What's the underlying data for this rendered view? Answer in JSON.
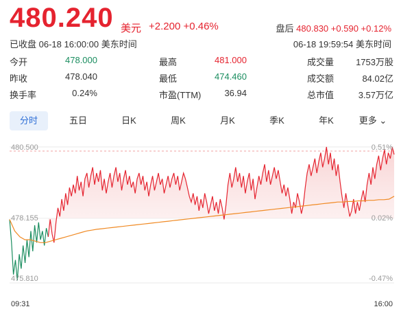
{
  "header": {
    "price": "480.240",
    "currency": "美元",
    "change": "+2.200",
    "change_pct": "+0.46%",
    "after_hours_label": "盘后",
    "after_hours_price": "480.830",
    "after_hours_change": "+0.590",
    "after_hours_pct": "+0.12%",
    "status": "已收盘 06-18 16:00:00 美东时间",
    "after_hours_time": "06-18 19:59:54 美东时间"
  },
  "stats": [
    [
      {
        "label": "今开",
        "value": "478.000",
        "color": "green"
      },
      {
        "label": "最高",
        "value": "481.000",
        "color": "red"
      },
      {
        "label": "成交量",
        "value": "1753万股",
        "color": "normal"
      }
    ],
    [
      {
        "label": "昨收",
        "value": "478.040",
        "color": "normal"
      },
      {
        "label": "最低",
        "value": "474.460",
        "color": "green"
      },
      {
        "label": "成交额",
        "value": "84.02亿",
        "color": "normal"
      }
    ],
    [
      {
        "label": "换手率",
        "value": "0.24%",
        "color": "normal"
      },
      {
        "label": "市盈(TTM)",
        "value": "36.94",
        "color": "normal"
      },
      {
        "label": "总市值",
        "value": "3.57万亿",
        "color": "normal"
      }
    ]
  ],
  "tabs": [
    "分时",
    "五日",
    "日K",
    "周K",
    "月K",
    "季K",
    "年K",
    "更多"
  ],
  "active_tab": 0,
  "chart_data": {
    "type": "line",
    "y_left_ticks": [
      "480.500",
      "478.155",
      "475.810"
    ],
    "y_right_ticks": [
      "0.51%",
      "0.02%",
      "-0.47%"
    ],
    "x_labels": [
      "09:31",
      "16:00"
    ],
    "ylim": [
      475.81,
      480.5
    ],
    "prev_close": 478.04,
    "series": [
      {
        "values": [
          478.0,
          477.2,
          476.1,
          476.6,
          475.9,
          476.8,
          476.3,
          477.1,
          476.5,
          477.3,
          476.7,
          477.6,
          476.9,
          477.8,
          477.2,
          477.9,
          477.3,
          477.6,
          477.1,
          477.7,
          477.4,
          478.0,
          477.5,
          477.2,
          477.9,
          478.4,
          478.1,
          478.7,
          478.3,
          478.9,
          478.5,
          479.1,
          478.8,
          479.2,
          478.9,
          479.5,
          479.0,
          479.3,
          478.8,
          479.4,
          479.6,
          479.1,
          479.5,
          479.8,
          479.2,
          479.6,
          479.3,
          479.7,
          479.0,
          479.4,
          478.9,
          479.3,
          479.6,
          479.1,
          479.5,
          479.8,
          479.3,
          479.6,
          479.0,
          479.4,
          479.7,
          479.2,
          479.5,
          479.1,
          479.3,
          478.9,
          479.4,
          479.6,
          479.2,
          479.5,
          479.0,
          479.3,
          478.8,
          479.2,
          479.5,
          479.0,
          479.3,
          479.6,
          479.2,
          479.4,
          478.9,
          479.2,
          479.5,
          479.1,
          479.4,
          479.6,
          479.2,
          479.5,
          479.0,
          479.3,
          479.6,
          479.4,
          479.1,
          478.8,
          478.6,
          478.9,
          478.5,
          478.8,
          478.3,
          478.7,
          478.4,
          478.9,
          478.6,
          478.2,
          478.5,
          478.8,
          478.3,
          478.6,
          478.2,
          478.7,
          478.4,
          478.0,
          478.5,
          479.2,
          479.6,
          479.1,
          479.4,
          479.8,
          479.3,
          479.6,
          479.1,
          479.5,
          478.9,
          479.3,
          479.6,
          479.0,
          479.4,
          478.7,
          479.1,
          479.5,
          479.2,
          479.6,
          479.9,
          479.3,
          479.7,
          479.2,
          479.5,
          479.8,
          479.4,
          479.7,
          479.3,
          478.9,
          479.2,
          478.8,
          479.1,
          478.7,
          478.2,
          478.6,
          478.4,
          478.9,
          478.6,
          478.2,
          478.5,
          479.1,
          479.6,
          479.9,
          479.5,
          479.8,
          480.1,
          479.6,
          480.0,
          480.3,
          479.8,
          480.1,
          480.5,
          479.9,
          480.3,
          479.7,
          480.1,
          479.5,
          479.9,
          479.3,
          478.8,
          478.4,
          478.9,
          478.5,
          478.1,
          478.3,
          478.7,
          478.2,
          478.6,
          478.3,
          478.7,
          479.0,
          478.6,
          479.2,
          479.6,
          479.2,
          479.8,
          479.4,
          479.9,
          480.2,
          479.7,
          480.1,
          480.4,
          479.9,
          480.3,
          480.1,
          480.5,
          480.24
        ]
      },
      {
        "values": [
          478.0,
          477.6,
          477.4,
          477.3,
          477.3,
          477.25,
          477.2,
          477.2,
          477.25,
          477.3,
          477.35,
          477.4,
          477.45,
          477.5,
          477.55,
          477.6,
          477.63,
          477.66,
          477.68,
          477.7,
          477.72,
          477.74,
          477.76,
          477.78,
          477.8,
          477.82,
          477.84,
          477.86,
          477.88,
          477.9,
          477.92,
          477.94,
          477.96,
          477.98,
          478.0,
          478.02,
          478.04,
          478.06,
          478.08,
          478.1,
          478.12,
          478.14,
          478.16,
          478.18,
          478.2,
          478.22,
          478.24,
          478.26,
          478.28,
          478.3,
          478.32,
          478.34,
          478.36,
          478.38,
          478.4,
          478.42,
          478.44,
          478.46,
          478.48,
          478.5,
          478.52,
          478.54,
          478.56,
          478.58,
          478.6,
          478.6,
          478.62,
          478.62,
          478.64,
          478.64,
          478.66,
          478.66,
          478.68,
          478.68,
          478.7,
          478.8
        ]
      }
    ]
  }
}
